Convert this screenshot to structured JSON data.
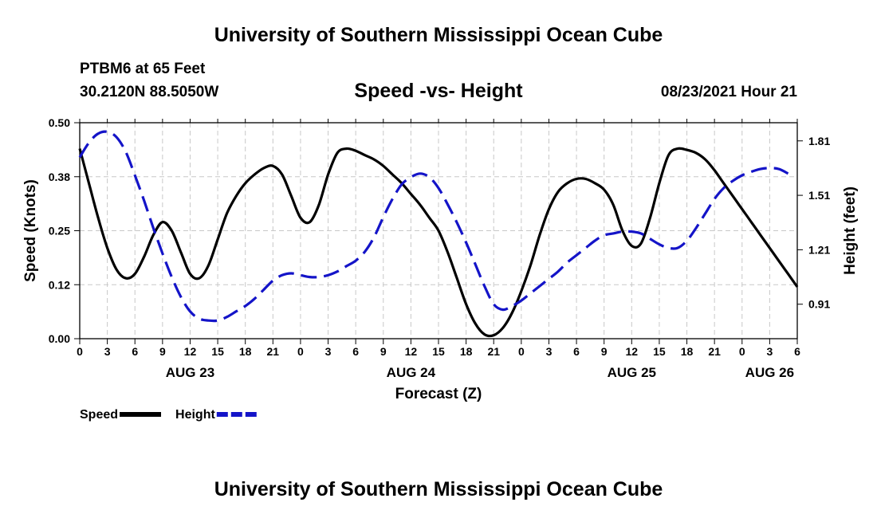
{
  "header": {
    "title": "University of Southern Mississippi Ocean Cube",
    "station": "PTBM6 at 65 Feet",
    "coordinates": "30.2120N  88.5050W",
    "subtitle": "Speed -vs- Height",
    "timestamp": "08/23/2021 Hour 21"
  },
  "footer": {
    "title": "University of Southern Mississippi Ocean Cube"
  },
  "chart_data": {
    "type": "line",
    "title": "Speed -vs- Height",
    "xlabel": "Forecast (Z)",
    "ylabel": "Speed (Knots)",
    "y2label": "Height (feet)",
    "xlim": [
      0,
      78
    ],
    "ylim": [
      0,
      0.5
    ],
    "y2lim": [
      0.72,
      1.91
    ],
    "grid": true,
    "x_ticks": [
      0,
      3,
      6,
      9,
      12,
      15,
      18,
      21,
      24,
      27,
      30,
      33,
      36,
      39,
      42,
      45,
      48,
      51,
      54,
      57,
      60,
      63,
      66,
      69,
      72,
      75,
      78
    ],
    "x_tick_labels": [
      "0",
      "3",
      "6",
      "9",
      "12",
      "15",
      "18",
      "21",
      "0",
      "3",
      "6",
      "9",
      "12",
      "15",
      "18",
      "21",
      "0",
      "3",
      "6",
      "9",
      "12",
      "15",
      "18",
      "21",
      "0",
      "3",
      "6"
    ],
    "y_ticks": [
      0,
      0.125,
      0.25,
      0.375,
      0.5
    ],
    "y_tick_labels": [
      "0.00",
      "0.12",
      "0.25",
      "0.38",
      "0.50"
    ],
    "y2_ticks": [
      0.91,
      1.21,
      1.51,
      1.81
    ],
    "y2_tick_labels": [
      "0.91",
      "1.21",
      "1.51",
      "1.81"
    ],
    "date_labels": [
      {
        "x": 12,
        "label": "AUG 23"
      },
      {
        "x": 36,
        "label": "AUG 24"
      },
      {
        "x": 60,
        "label": "AUG 25"
      },
      {
        "x": 75,
        "label": "AUG 26"
      }
    ],
    "series": [
      {
        "name": "Speed",
        "axis": "left",
        "color": "#000000",
        "dash": false,
        "x": [
          0,
          1,
          2,
          3,
          4,
          5,
          6,
          7,
          8,
          9,
          10,
          11,
          12,
          13,
          14,
          15,
          16,
          17,
          18,
          19,
          20,
          21,
          22,
          23,
          24,
          25,
          26,
          27,
          28,
          29,
          30,
          31,
          32,
          33,
          34,
          35,
          36,
          37,
          38,
          39,
          40,
          41,
          42,
          43,
          44,
          45,
          46,
          47,
          48,
          49,
          50,
          51,
          52,
          53,
          54,
          55,
          56,
          57,
          58,
          59,
          60,
          61,
          62,
          63,
          64,
          65,
          66,
          67,
          68,
          69,
          70,
          71,
          72,
          73,
          74,
          75,
          76,
          77,
          78
        ],
        "values": [
          0.44,
          0.36,
          0.28,
          0.21,
          0.16,
          0.14,
          0.15,
          0.19,
          0.24,
          0.27,
          0.25,
          0.2,
          0.15,
          0.14,
          0.17,
          0.23,
          0.29,
          0.33,
          0.36,
          0.38,
          0.395,
          0.4,
          0.38,
          0.33,
          0.28,
          0.27,
          0.31,
          0.38,
          0.43,
          0.44,
          0.435,
          0.425,
          0.415,
          0.4,
          0.38,
          0.36,
          0.335,
          0.31,
          0.28,
          0.25,
          0.2,
          0.14,
          0.08,
          0.035,
          0.01,
          0.008,
          0.025,
          0.06,
          0.11,
          0.17,
          0.24,
          0.3,
          0.34,
          0.36,
          0.37,
          0.37,
          0.36,
          0.345,
          0.31,
          0.25,
          0.215,
          0.22,
          0.28,
          0.36,
          0.425,
          0.44,
          0.437,
          0.43,
          0.415,
          0.39,
          0.36,
          0.33,
          0.3,
          0.27,
          0.24,
          0.21,
          0.18,
          0.15,
          0.12
        ]
      },
      {
        "name": "Height",
        "axis": "right",
        "color": "#1414c8",
        "dash": true,
        "x": [
          0,
          1,
          2,
          3,
          4,
          5,
          6,
          7,
          8,
          9,
          10,
          11,
          12,
          13,
          14,
          15,
          16,
          17,
          18,
          19,
          20,
          21,
          22,
          23,
          24,
          25,
          26,
          27,
          28,
          29,
          30,
          31,
          32,
          33,
          34,
          35,
          36,
          37,
          38,
          39,
          40,
          41,
          42,
          43,
          44,
          45,
          46,
          47,
          48,
          49,
          50,
          51,
          52,
          53,
          54,
          55,
          56,
          57,
          58,
          59,
          60,
          61,
          62,
          63,
          64,
          65,
          66,
          67,
          68,
          69,
          70,
          71,
          72,
          73,
          74,
          75,
          76,
          77
        ],
        "values": [
          1.72,
          1.8,
          1.85,
          1.86,
          1.83,
          1.75,
          1.62,
          1.48,
          1.33,
          1.19,
          1.06,
          0.95,
          0.87,
          0.83,
          0.82,
          0.82,
          0.84,
          0.87,
          0.9,
          0.94,
          0.99,
          1.04,
          1.07,
          1.08,
          1.07,
          1.06,
          1.06,
          1.07,
          1.09,
          1.12,
          1.15,
          1.2,
          1.28,
          1.39,
          1.49,
          1.57,
          1.61,
          1.63,
          1.61,
          1.55,
          1.46,
          1.36,
          1.25,
          1.13,
          1.01,
          0.91,
          0.88,
          0.9,
          0.93,
          0.97,
          1.01,
          1.05,
          1.09,
          1.14,
          1.18,
          1.22,
          1.26,
          1.29,
          1.3,
          1.31,
          1.31,
          1.3,
          1.27,
          1.24,
          1.22,
          1.22,
          1.26,
          1.33,
          1.41,
          1.49,
          1.55,
          1.59,
          1.62,
          1.64,
          1.655,
          1.66,
          1.655,
          1.63
        ]
      }
    ],
    "legend": {
      "placement": "bottom-left",
      "entries": [
        {
          "label": "Speed",
          "color": "#000000",
          "dash": false
        },
        {
          "label": "Height",
          "color": "#1414c8",
          "dash": true
        }
      ]
    }
  }
}
